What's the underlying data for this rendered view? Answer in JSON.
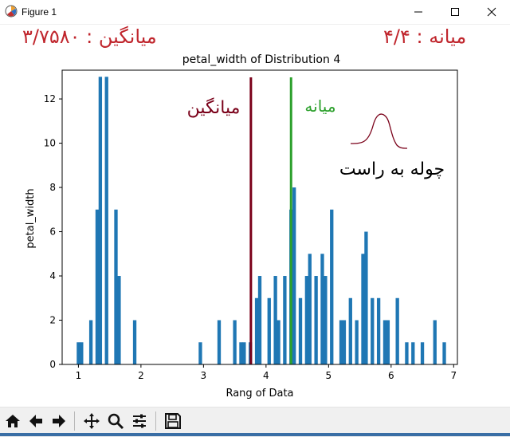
{
  "window": {
    "title": "Figure 1"
  },
  "stats": {
    "mean_text": "میانگین : ۳/۷۵۸۰",
    "median_text": "میانه : ۴/۴"
  },
  "colors": {
    "bar": "#1f77b4",
    "mean_line": "#7a0019",
    "median_line": "#2ca02c",
    "stat_text": "#c0262d",
    "mean_label": "#7a0019",
    "median_label": "#2ca02c",
    "skew_curve": "#7a0019"
  },
  "annotations": {
    "mean_label": "میانگین",
    "median_label": "میانه",
    "skew_label": "چوله به راست"
  },
  "chart_data": {
    "type": "bar",
    "title": "petal_width of Distribution 4",
    "xlabel": "Rang of Data",
    "ylabel": "petal_width",
    "xlim": [
      0.74,
      7.06
    ],
    "ylim": [
      0,
      13.3
    ],
    "xticks": [
      1,
      2,
      3,
      4,
      5,
      6,
      7
    ],
    "yticks": [
      0,
      2,
      4,
      6,
      8,
      10,
      12
    ],
    "bar_width": 0.055,
    "x": [
      1.0,
      1.05,
      1.2,
      1.3,
      1.35,
      1.45,
      1.6,
      1.65,
      1.9,
      2.95,
      3.25,
      3.5,
      3.6,
      3.65,
      3.75,
      3.85,
      3.9,
      4.05,
      4.15,
      4.2,
      4.3,
      4.4,
      4.45,
      4.55,
      4.65,
      4.7,
      4.8,
      4.9,
      4.95,
      5.05,
      5.2,
      5.25,
      5.35,
      5.45,
      5.55,
      5.6,
      5.7,
      5.8,
      5.9,
      5.95,
      6.1,
      6.25,
      6.35,
      6.5,
      6.7,
      6.85
    ],
    "values": [
      1,
      1,
      2,
      7,
      13,
      13,
      7,
      4,
      2,
      1,
      2,
      2,
      1,
      1,
      1,
      3,
      4,
      3,
      4,
      2,
      4,
      7,
      8,
      3,
      4,
      5,
      4,
      5,
      4,
      7,
      2,
      2,
      3,
      2,
      5,
      6,
      3,
      3,
      2,
      2,
      3,
      1,
      1,
      1,
      2,
      1
    ],
    "mean": 3.758,
    "median": 4.4
  },
  "toolbar": {
    "home": "home-icon",
    "back": "back-arrow-icon",
    "forward": "forward-arrow-icon",
    "pan": "pan-icon",
    "zoom": "zoom-icon",
    "configure": "configure-subplots-icon",
    "save": "save-icon"
  }
}
